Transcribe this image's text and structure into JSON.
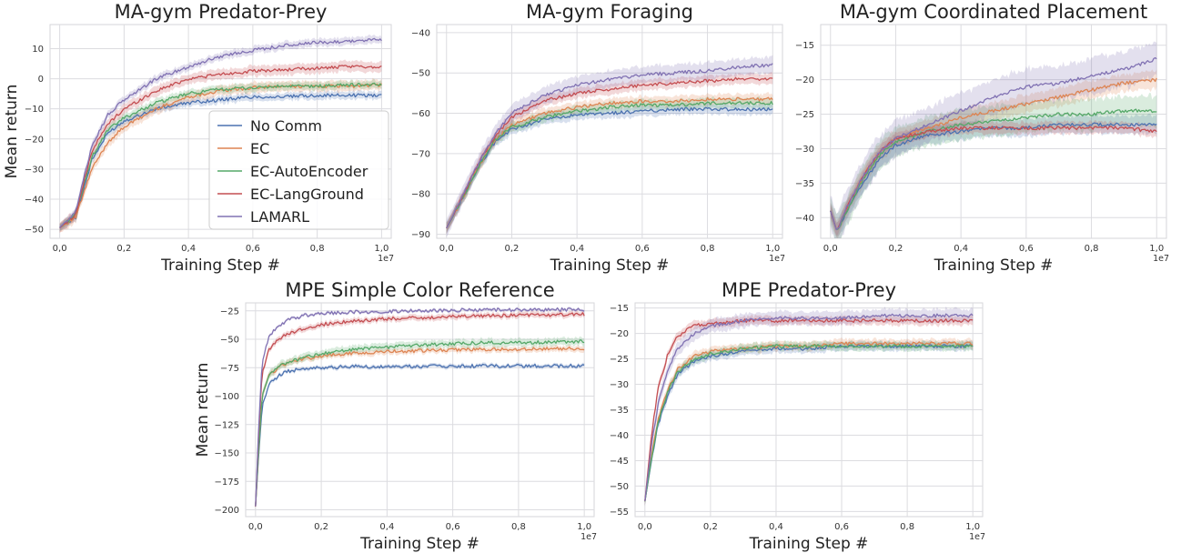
{
  "chart_data": [
    {
      "type": "line",
      "title": "MA-gym Predator-Prey",
      "xlabel": "Training Step #",
      "ylabel": "Mean return",
      "xlim": [
        -0.03,
        1.03
      ],
      "ylim": [
        -53,
        18
      ],
      "xticks": [
        0.0,
        0.2,
        0.4,
        0.6,
        0.8,
        1.0
      ],
      "xtick_labels": [
        "0,0",
        "0,2",
        "0,4",
        "0,6",
        "0,8",
        "1,0"
      ],
      "yticks": [
        -50,
        -40,
        -30,
        -20,
        -10,
        0,
        10
      ],
      "ytick_labels": [
        "−50",
        "−40",
        "−30",
        "−20",
        "−10",
        "0",
        "10"
      ],
      "x_exponent_label": "1e7",
      "grid": true,
      "legend": {
        "placement": "lower right",
        "entries": [
          "No Comm",
          "EC",
          "EC-AutoEncoder",
          "EC-LangGround",
          "LAMARL"
        ]
      },
      "x": [
        0.0,
        0.05,
        0.1,
        0.15,
        0.2,
        0.3,
        0.4,
        0.5,
        0.6,
        0.7,
        0.8,
        0.9,
        1.0
      ],
      "series": [
        {
          "name": "No Comm",
          "values": [
            -49.5,
            -46,
            -27,
            -18,
            -14,
            -10,
            -8,
            -7,
            -6,
            -6,
            -5.5,
            -5.5,
            -5.5
          ],
          "band": 1.5
        },
        {
          "name": "EC",
          "values": [
            -49.5,
            -46,
            -30,
            -21,
            -16,
            -10,
            -6,
            -4,
            -3,
            -2.5,
            -2.5,
            -2.5,
            -2
          ],
          "band": 2
        },
        {
          "name": "EC-AutoEncoder",
          "values": [
            -49.5,
            -45,
            -26,
            -17,
            -13,
            -8,
            -5,
            -3.5,
            -3,
            -2.5,
            -2.5,
            -2,
            -2
          ],
          "band": 1.5
        },
        {
          "name": "EC-LangGround",
          "values": [
            -49.5,
            -45,
            -24,
            -15,
            -10,
            -4,
            0,
            1.5,
            2.5,
            3,
            3.5,
            4,
            4
          ],
          "band": 2
        },
        {
          "name": "LAMARL",
          "values": [
            -49.5,
            -44,
            -22,
            -12,
            -7,
            0,
            4,
            7.5,
            9.5,
            11,
            12,
            12.5,
            13
          ],
          "band": 1.5
        }
      ]
    },
    {
      "type": "line",
      "title": "MA-gym Foraging",
      "xlabel": "Training Step #",
      "ylabel": "",
      "xlim": [
        -0.03,
        1.03
      ],
      "ylim": [
        -91,
        -38
      ],
      "xticks": [
        0.0,
        0.2,
        0.4,
        0.6,
        0.8,
        1.0
      ],
      "xtick_labels": [
        "0,0",
        "0,2",
        "0,4",
        "0,6",
        "0,8",
        "1,0"
      ],
      "yticks": [
        -90,
        -80,
        -70,
        -60,
        -50,
        -40
      ],
      "ytick_labels": [
        "−90",
        "−80",
        "−70",
        "−60",
        "−50",
        "−40"
      ],
      "x_exponent_label": "1e7",
      "grid": true,
      "x": [
        0.0,
        0.05,
        0.1,
        0.15,
        0.2,
        0.3,
        0.4,
        0.5,
        0.6,
        0.7,
        0.8,
        0.9,
        1.0
      ],
      "series": [
        {
          "name": "No Comm",
          "values": [
            -88.5,
            -81,
            -73,
            -67,
            -64,
            -61.5,
            -60.5,
            -60,
            -59.5,
            -59,
            -59,
            -59,
            -59
          ],
          "band": 1.5
        },
        {
          "name": "EC",
          "values": [
            -88.5,
            -81,
            -73,
            -66.5,
            -63,
            -60,
            -58.5,
            -57.5,
            -57,
            -57,
            -56.5,
            -56.5,
            -56.5
          ],
          "band": 1.5
        },
        {
          "name": "EC-AutoEncoder",
          "values": [
            -88.5,
            -81,
            -73,
            -66.5,
            -63.5,
            -61,
            -59.5,
            -58.5,
            -58,
            -58,
            -57.5,
            -57.5,
            -57.5
          ],
          "band": 1.5
        },
        {
          "name": "EC-LangGround",
          "values": [
            -88.5,
            -80.5,
            -72,
            -65.5,
            -61,
            -57,
            -55,
            -54,
            -53,
            -52.5,
            -52,
            -51.5,
            -51.5
          ],
          "band": 1.5
        },
        {
          "name": "LAMARL",
          "values": [
            -88.5,
            -80.5,
            -72,
            -65,
            -60,
            -55.5,
            -53,
            -51.5,
            -50.5,
            -50,
            -49.5,
            -48.5,
            -48
          ],
          "band": 2.5
        }
      ]
    },
    {
      "type": "line",
      "title": "MA-gym Coordinated Placement",
      "xlabel": "Training Step #",
      "ylabel": "",
      "xlim": [
        -0.03,
        1.03
      ],
      "ylim": [
        -43,
        -12
      ],
      "xticks": [
        0.0,
        0.2,
        0.4,
        0.6,
        0.8,
        1.0
      ],
      "xtick_labels": [
        "0,0",
        "0,2",
        "0,4",
        "0,6",
        "0,8",
        "1,0"
      ],
      "yticks": [
        -40,
        -35,
        -30,
        -25,
        -20,
        -15
      ],
      "ytick_labels": [
        "−40",
        "−35",
        "−30",
        "−25",
        "−20",
        "−15"
      ],
      "x_exponent_label": "1e7",
      "grid": true,
      "x": [
        0.0,
        0.02,
        0.05,
        0.1,
        0.15,
        0.2,
        0.3,
        0.4,
        0.5,
        0.6,
        0.7,
        0.8,
        0.9,
        1.0
      ],
      "series": [
        {
          "name": "No Comm",
          "values": [
            -39,
            -42,
            -39,
            -35,
            -31.5,
            -29.5,
            -28,
            -27.5,
            -27,
            -27,
            -26.5,
            -26.5,
            -26.5,
            -26.5
          ],
          "band": 1.5
        },
        {
          "name": "EC",
          "values": [
            -39,
            -42,
            -38.5,
            -34,
            -30.5,
            -28.5,
            -27,
            -25.5,
            -24.5,
            -23.5,
            -22.5,
            -21.5,
            -20.5,
            -20
          ],
          "band": 1.5
        },
        {
          "name": "EC-AutoEncoder",
          "values": [
            -39,
            -42,
            -39,
            -34.5,
            -31,
            -29,
            -27.5,
            -26.5,
            -26,
            -25.5,
            -25,
            -25,
            -24.5,
            -24.5
          ],
          "band": 2.5
        },
        {
          "name": "EC-LangGround",
          "values": [
            -39,
            -42,
            -38.5,
            -34,
            -30.5,
            -28.5,
            -27.5,
            -27,
            -27,
            -27,
            -27,
            -27,
            -27,
            -27.5
          ],
          "band": 1
        },
        {
          "name": "LAMARL",
          "values": [
            -39,
            -42,
            -38.5,
            -34,
            -30.5,
            -28.5,
            -26.5,
            -24.5,
            -22.5,
            -21,
            -20.5,
            -19.5,
            -18.5,
            -17
          ],
          "band": 3
        }
      ]
    },
    {
      "type": "line",
      "title": "MPE Simple Color Reference",
      "xlabel": "Training Step #",
      "ylabel": "Mean return",
      "xlim": [
        -0.03,
        1.03
      ],
      "ylim": [
        -206,
        -18
      ],
      "xticks": [
        0.0,
        0.2,
        0.4,
        0.6,
        0.8,
        1.0
      ],
      "xtick_labels": [
        "0,0",
        "0,2",
        "0,4",
        "0,6",
        "0,8",
        "1,0"
      ],
      "yticks": [
        -200,
        -175,
        -150,
        -125,
        -100,
        -75,
        -50,
        -25
      ],
      "ytick_labels": [
        "−200",
        "−175",
        "−150",
        "−125",
        "−100",
        "−75",
        "−50",
        "−25"
      ],
      "x_exponent_label": "1e7",
      "grid": true,
      "x": [
        0.0,
        0.01,
        0.02,
        0.04,
        0.07,
        0.1,
        0.15,
        0.2,
        0.3,
        0.4,
        0.5,
        0.6,
        0.7,
        0.8,
        0.9,
        1.0
      ],
      "series": [
        {
          "name": "No Comm",
          "values": [
            -197,
            -150,
            -110,
            -90,
            -82,
            -78,
            -76,
            -75,
            -74,
            -74,
            -74,
            -73.5,
            -73.5,
            -73.5,
            -73.5,
            -73.5
          ],
          "band": 2
        },
        {
          "name": "EC",
          "values": [
            -197,
            -145,
            -100,
            -82,
            -75,
            -70,
            -67,
            -65,
            -62,
            -61,
            -60,
            -59.5,
            -59,
            -59,
            -58.5,
            -58
          ],
          "band": 3
        },
        {
          "name": "EC-AutoEncoder",
          "values": [
            -197,
            -145,
            -100,
            -82,
            -74,
            -70,
            -66,
            -63,
            -59,
            -57,
            -55,
            -54,
            -53,
            -53,
            -52.5,
            -52
          ],
          "band": 4
        },
        {
          "name": "EC-LangGround",
          "values": [
            -197,
            -130,
            -80,
            -60,
            -50,
            -45,
            -40,
            -37,
            -34,
            -32,
            -31,
            -30,
            -29.5,
            -29,
            -28.5,
            -28
          ],
          "band": 3
        },
        {
          "name": "LAMARL",
          "values": [
            -197,
            -125,
            -70,
            -48,
            -38,
            -33,
            -29,
            -27.5,
            -26,
            -25.5,
            -25,
            -24.5,
            -24,
            -24,
            -24,
            -24
          ],
          "band": 1.5
        }
      ]
    },
    {
      "type": "line",
      "title": "MPE Predator-Prey",
      "xlabel": "Training Step #",
      "ylabel": "",
      "xlim": [
        -0.03,
        1.03
      ],
      "ylim": [
        -56,
        -14
      ],
      "xticks": [
        0.0,
        0.2,
        0.4,
        0.6,
        0.8,
        1.0
      ],
      "xtick_labels": [
        "0,0",
        "0,2",
        "0,4",
        "0,6",
        "0,8",
        "1,0"
      ],
      "yticks": [
        -55,
        -50,
        -45,
        -40,
        -35,
        -30,
        -25,
        -20,
        -15
      ],
      "ytick_labels": [
        "−55",
        "−50",
        "−45",
        "−40",
        "−35",
        "−30",
        "−25",
        "−20",
        "−15"
      ],
      "x_exponent_label": "1e7",
      "grid": true,
      "x": [
        0.0,
        0.02,
        0.04,
        0.07,
        0.1,
        0.15,
        0.2,
        0.3,
        0.4,
        0.5,
        0.6,
        0.7,
        0.8,
        0.9,
        1.0
      ],
      "series": [
        {
          "name": "No Comm",
          "values": [
            -53,
            -45,
            -38,
            -32,
            -28,
            -25.5,
            -24.5,
            -23.5,
            -23,
            -23,
            -22.5,
            -22.5,
            -22.5,
            -22.5,
            -22.5
          ],
          "band": 1
        },
        {
          "name": "EC",
          "values": [
            -53,
            -44,
            -37,
            -31,
            -27,
            -24.5,
            -23.5,
            -23,
            -22.5,
            -22.5,
            -22,
            -22,
            -22,
            -22,
            -22
          ],
          "band": 1
        },
        {
          "name": "EC-AutoEncoder",
          "values": [
            -53,
            -44.5,
            -37.5,
            -31.5,
            -27.5,
            -25,
            -24,
            -23,
            -22.5,
            -22.5,
            -22.5,
            -22.5,
            -22.5,
            -22.5,
            -22.5
          ],
          "band": 1
        },
        {
          "name": "EC-LangGround",
          "values": [
            -53,
            -40,
            -31,
            -24,
            -20.5,
            -18.5,
            -18,
            -17.5,
            -17.5,
            -17.5,
            -17.5,
            -17.5,
            -17.5,
            -17.5,
            -17.5
          ],
          "band": 1
        },
        {
          "name": "LAMARL",
          "values": [
            -53,
            -42,
            -34,
            -27,
            -23,
            -20,
            -18.5,
            -17.5,
            -17,
            -17,
            -17,
            -16.5,
            -16.5,
            -16.5,
            -16.5
          ],
          "band": 1.5
        }
      ]
    }
  ],
  "colors": {
    "No Comm": "#4c72b0",
    "EC": "#dd8452",
    "EC-AutoEncoder": "#55a868",
    "EC-LangGround": "#c44e52",
    "LAMARL": "#8172b3",
    "grid": "#dcdce0",
    "spine": "#d5d5d9"
  }
}
